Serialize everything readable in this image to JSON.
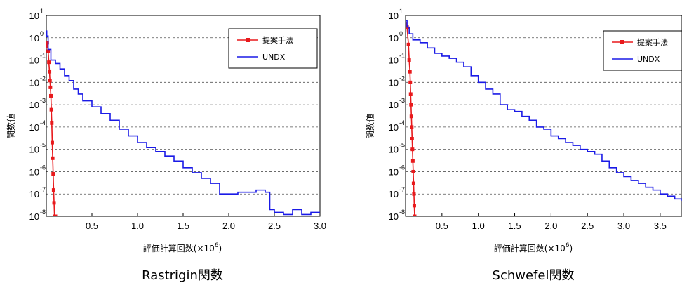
{
  "chart_data": [
    {
      "type": "line",
      "caption": "Rastrigin関数",
      "xlabel": "評価計算回数(×10",
      "xlabel_exp": "6",
      "xlabel_close": ")",
      "ylabel": "関数値",
      "xlim": [
        0,
        3.0
      ],
      "ylim_log10": [
        -8,
        1
      ],
      "y_scale": "log",
      "grid": "horizontal dashed",
      "legend_position": "top-right",
      "x_ticks": [
        0.5,
        1.0,
        1.5,
        2.0,
        2.5,
        3.0
      ],
      "x_tick_labels": [
        "0.5",
        "1.0",
        "1.5",
        "2.0",
        "2.5",
        "3.0"
      ],
      "y_tick_exponents": [
        1,
        0,
        -1,
        -2,
        -3,
        -4,
        -5,
        -6,
        -7,
        -8
      ],
      "series": [
        {
          "name": "提案手法",
          "color": "#e8191c",
          "marker": "square",
          "x": [
            0.0,
            0.01,
            0.02,
            0.028,
            0.035,
            0.04,
            0.045,
            0.05,
            0.055,
            0.06,
            0.065,
            0.07,
            0.075,
            0.08,
            0.085,
            0.09,
            0.095,
            0.1
          ],
          "y": [
            0.4,
            0.6,
            0.25,
            0.08,
            0.03,
            0.012,
            0.006,
            0.0025,
            0.0006,
            0.00015,
            2e-05,
            4e-06,
            8e-07,
            1.5e-07,
            4e-08,
            1e-08,
            1e-08,
            1e-08
          ]
        },
        {
          "name": "UNDX",
          "color": "#1a1ae6",
          "marker": "none",
          "x": [
            0.0,
            0.005,
            0.02,
            0.05,
            0.1,
            0.15,
            0.2,
            0.25,
            0.3,
            0.35,
            0.4,
            0.5,
            0.6,
            0.7,
            0.8,
            0.9,
            1.0,
            1.1,
            1.2,
            1.3,
            1.4,
            1.5,
            1.6,
            1.7,
            1.8,
            1.9,
            2.0,
            2.1,
            2.2,
            2.3,
            2.4,
            2.45,
            2.5,
            2.6,
            2.7,
            2.8,
            2.9,
            3.0
          ],
          "y": [
            2.0,
            1.2,
            0.3,
            0.1,
            0.07,
            0.04,
            0.02,
            0.012,
            0.005,
            0.003,
            0.0015,
            0.0008,
            0.0004,
            0.0002,
            8e-05,
            4e-05,
            2e-05,
            1.2e-05,
            8e-06,
            5e-06,
            3e-06,
            1.5e-06,
            9e-07,
            5e-07,
            3e-07,
            1e-07,
            1e-07,
            1.2e-07,
            1.2e-07,
            1.5e-07,
            1.2e-07,
            2e-08,
            1.5e-08,
            1.2e-08,
            2e-08,
            1.2e-08,
            1.5e-08,
            1.5e-08
          ]
        }
      ]
    },
    {
      "type": "line",
      "caption": "Schwefel関数",
      "xlabel": "評価計算回数(×10",
      "xlabel_exp": "6",
      "xlabel_close": ")",
      "ylabel": "関数値",
      "xlim": [
        0,
        3.8
      ],
      "ylim_log10": [
        -8,
        1
      ],
      "y_scale": "log",
      "grid": "horizontal dashed",
      "legend_position": "top-right",
      "x_ticks": [
        0.5,
        1.0,
        1.5,
        2.0,
        2.5,
        3.0,
        3.5
      ],
      "x_tick_labels": [
        "0.5",
        "1.0",
        "1.5",
        "2.0",
        "2.5",
        "3.0",
        "3.5"
      ],
      "y_tick_exponents": [
        1,
        0,
        -1,
        -2,
        -3,
        -4,
        -5,
        -6,
        -7,
        -8
      ],
      "series": [
        {
          "name": "提案手法",
          "color": "#e8191c",
          "marker": "square",
          "x": [
            0.0,
            0.02,
            0.04,
            0.05,
            0.06,
            0.065,
            0.07,
            0.075,
            0.08,
            0.085,
            0.09,
            0.095,
            0.1,
            0.105,
            0.11,
            0.115,
            0.12,
            0.125
          ],
          "y": [
            4.0,
            3.0,
            0.5,
            0.1,
            0.03,
            0.01,
            0.003,
            0.001,
            0.0003,
            0.0001,
            3e-05,
            1e-05,
            3e-06,
            1e-06,
            3e-07,
            1e-07,
            3e-08,
            1e-08
          ]
        },
        {
          "name": "UNDX",
          "color": "#1a1ae6",
          "marker": "none",
          "x": [
            0.0,
            0.02,
            0.05,
            0.1,
            0.2,
            0.3,
            0.4,
            0.5,
            0.6,
            0.7,
            0.8,
            0.9,
            1.0,
            1.1,
            1.2,
            1.3,
            1.4,
            1.5,
            1.6,
            1.7,
            1.8,
            1.9,
            2.0,
            2.1,
            2.2,
            2.3,
            2.4,
            2.5,
            2.6,
            2.7,
            2.8,
            2.9,
            3.0,
            3.1,
            3.2,
            3.3,
            3.4,
            3.5,
            3.6,
            3.7,
            3.8
          ],
          "y": [
            6.0,
            3.0,
            1.5,
            0.8,
            0.6,
            0.35,
            0.2,
            0.15,
            0.12,
            0.08,
            0.05,
            0.02,
            0.01,
            0.005,
            0.003,
            0.001,
            0.0006,
            0.0005,
            0.0003,
            0.0002,
            0.0001,
            8e-05,
            4e-05,
            3e-05,
            2e-05,
            1.5e-05,
            1e-05,
            8e-06,
            6e-06,
            3e-06,
            1.5e-06,
            9e-07,
            6e-07,
            4e-07,
            3e-07,
            2e-07,
            1.5e-07,
            1e-07,
            8e-08,
            6e-08,
            5e-08
          ]
        }
      ]
    }
  ]
}
